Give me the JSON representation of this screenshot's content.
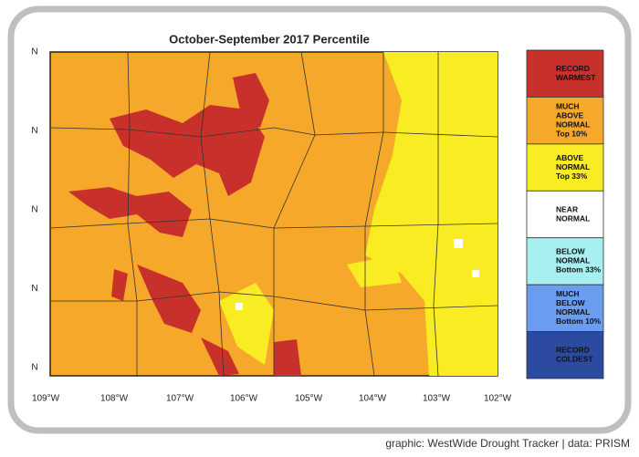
{
  "title": "October-September 2017 Percentile",
  "legend": [
    {
      "lines": [
        "RECORD",
        "WARMEST"
      ],
      "color": "#c8302c"
    },
    {
      "lines": [
        "MUCH",
        "ABOVE",
        "NORMAL",
        "Top 10%"
      ],
      "color": "#f5a82a"
    },
    {
      "lines": [
        "ABOVE",
        "NORMAL",
        "Top 33%"
      ],
      "color": "#f9ec22"
    },
    {
      "lines": [
        "NEAR",
        "NORMAL"
      ],
      "color": "#ffffff"
    },
    {
      "lines": [
        "BELOW",
        "NORMAL",
        "Bottom 33%"
      ],
      "color": "#a6f0f0"
    },
    {
      "lines": [
        "MUCH",
        "BELOW",
        "NORMAL",
        "Bottom 10%"
      ],
      "color": "#6a9cf0"
    },
    {
      "lines": [
        "RECORD",
        "COLDEST"
      ],
      "color": "#2c4ba0"
    }
  ],
  "longitude_labels": [
    "109°W",
    "108°W",
    "107°W",
    "106°W",
    "105°W",
    "104°W",
    "103°W",
    "102°W"
  ],
  "latitude_labels": [
    "N",
    "N",
    "N",
    "N",
    "N"
  ],
  "credit": "graphic: WestWide Drought Tracker | data: PRISM"
}
